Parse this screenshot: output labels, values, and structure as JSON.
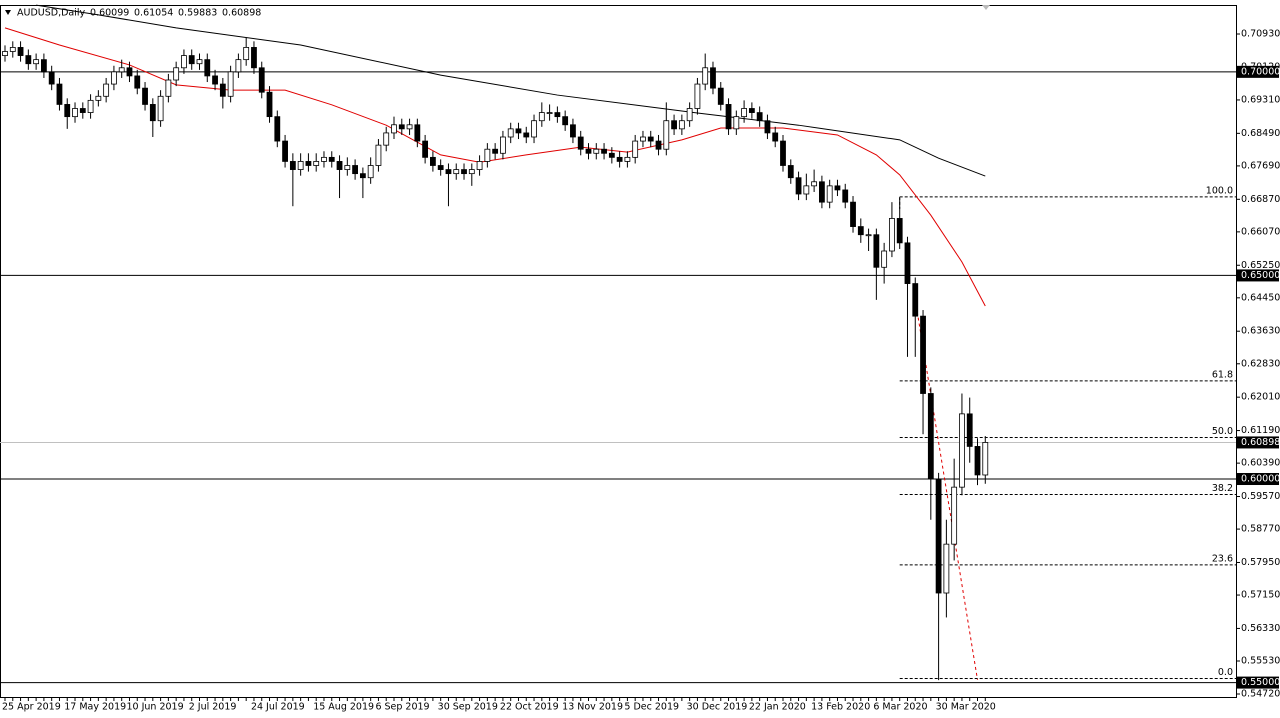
{
  "chart_data": {
    "type": "candlestick",
    "symbol": "AUDUSD,Daily",
    "ohlc_text": [
      "0.60099",
      "0.61054",
      "0.59883",
      "0.60898"
    ],
    "ylim": [
      0.54646,
      0.71642
    ],
    "yticks": [
      {
        "value": 0.7093,
        "label": "0.70930"
      },
      {
        "value": 0.7012,
        "label": "0.70120"
      },
      {
        "value": 0.6931,
        "label": "0.69310"
      },
      {
        "value": 0.6849,
        "label": "0.68490"
      },
      {
        "value": 0.6769,
        "label": "0.67690"
      },
      {
        "value": 0.6687,
        "label": "0.66870"
      },
      {
        "value": 0.6607,
        "label": "0.66070"
      },
      {
        "value": 0.6525,
        "label": "0.65250"
      },
      {
        "value": 0.6445,
        "label": "0.64450"
      },
      {
        "value": 0.6363,
        "label": "0.63630"
      },
      {
        "value": 0.6283,
        "label": "0.62830"
      },
      {
        "value": 0.6201,
        "label": "0.62010"
      },
      {
        "value": 0.6119,
        "label": "0.61190"
      },
      {
        "value": 0.6039,
        "label": "0.60390"
      },
      {
        "value": 0.5957,
        "label": "0.59570"
      },
      {
        "value": 0.5877,
        "label": "0.58770"
      },
      {
        "value": 0.5795,
        "label": "0.57950"
      },
      {
        "value": 0.5715,
        "label": "0.57150"
      },
      {
        "value": 0.5633,
        "label": "0.56330"
      },
      {
        "value": 0.5553,
        "label": "0.55530"
      },
      {
        "value": 0.5472,
        "label": "0.54720"
      }
    ],
    "hlines": [
      {
        "value": 0.7,
        "label": "0.70000"
      },
      {
        "value": 0.65,
        "label": "0.65000"
      },
      {
        "value": 0.6,
        "label": "0.60000"
      },
      {
        "value": 0.55,
        "label": "0.55000"
      }
    ],
    "price_line": {
      "value": 0.60898,
      "label": "0.60898"
    },
    "fib": {
      "start": 115,
      "levels": [
        {
          "value": 0.6693,
          "label": "100.0"
        },
        {
          "value": 0.6241,
          "label": "61.8"
        },
        {
          "value": 0.6102,
          "label": "50.0"
        },
        {
          "value": 0.5962,
          "label": "38.2"
        },
        {
          "value": 0.5789,
          "label": "23.6"
        },
        {
          "value": 0.551,
          "label": "0.0"
        }
      ]
    },
    "categories": [
      "25 Apr 2019",
      null,
      null,
      null,
      null,
      null,
      null,
      null,
      "17 May 2019",
      null,
      null,
      null,
      null,
      null,
      null,
      null,
      "10 Jun 2019",
      null,
      null,
      null,
      null,
      null,
      null,
      null,
      "2 Jul 2019",
      null,
      null,
      null,
      null,
      null,
      null,
      null,
      "24 Jul 2019",
      null,
      null,
      null,
      null,
      null,
      null,
      null,
      "15 Aug 2019",
      null,
      null,
      null,
      null,
      null,
      null,
      null,
      "6 Sep 2019",
      null,
      null,
      null,
      null,
      null,
      null,
      null,
      "30 Sep 2019",
      null,
      null,
      null,
      null,
      null,
      null,
      null,
      "22 Oct 2019",
      null,
      null,
      null,
      null,
      null,
      null,
      null,
      "13 Nov 2019",
      null,
      null,
      null,
      null,
      null,
      null,
      null,
      "5 Dec 2019",
      null,
      null,
      null,
      null,
      null,
      null,
      null,
      "30 Dec 2019",
      null,
      null,
      null,
      null,
      null,
      null,
      null,
      "22 Jan 2020",
      null,
      null,
      null,
      null,
      null,
      null,
      null,
      "13 Feb 2020",
      null,
      null,
      null,
      null,
      null,
      null,
      null,
      "6 Mar 2020",
      null,
      null,
      null,
      null,
      null,
      null,
      null,
      "30 Mar 2020",
      null,
      null,
      null,
      null,
      null,
      null
    ],
    "candles": [
      [
        0.704,
        0.7065,
        0.7025,
        0.705
      ],
      [
        0.705,
        0.7075,
        0.7035,
        0.706
      ],
      [
        0.706,
        0.7075,
        0.7025,
        0.704
      ],
      [
        0.704,
        0.7055,
        0.7005,
        0.702
      ],
      [
        0.702,
        0.7045,
        0.7005,
        0.703
      ],
      [
        0.703,
        0.7045,
        0.6985,
        0.7
      ],
      [
        0.7,
        0.7015,
        0.6955,
        0.697
      ],
      [
        0.697,
        0.6985,
        0.6905,
        0.692
      ],
      [
        0.692,
        0.6935,
        0.686,
        0.689
      ],
      [
        0.689,
        0.6925,
        0.6875,
        0.691
      ],
      [
        0.691,
        0.6925,
        0.6885,
        0.69
      ],
      [
        0.69,
        0.6945,
        0.6885,
        0.693
      ],
      [
        0.693,
        0.6955,
        0.6915,
        0.694
      ],
      [
        0.694,
        0.6985,
        0.6925,
        0.697
      ],
      [
        0.697,
        0.7015,
        0.6955,
        0.7
      ],
      [
        0.7,
        0.703,
        0.6985,
        0.701
      ],
      [
        0.701,
        0.7025,
        0.6975,
        0.699
      ],
      [
        0.699,
        0.7005,
        0.6945,
        0.696
      ],
      [
        0.696,
        0.6975,
        0.6905,
        0.692
      ],
      [
        0.692,
        0.6935,
        0.684,
        0.688
      ],
      [
        0.688,
        0.6955,
        0.6865,
        0.694
      ],
      [
        0.694,
        0.6995,
        0.6925,
        0.698
      ],
      [
        0.698,
        0.7025,
        0.6965,
        0.701
      ],
      [
        0.701,
        0.7055,
        0.6995,
        0.704
      ],
      [
        0.704,
        0.7055,
        0.7005,
        0.702
      ],
      [
        0.702,
        0.7045,
        0.7005,
        0.703
      ],
      [
        0.703,
        0.7045,
        0.6975,
        0.699
      ],
      [
        0.699,
        0.7005,
        0.6955,
        0.697
      ],
      [
        0.697,
        0.6985,
        0.691,
        0.694
      ],
      [
        0.694,
        0.7015,
        0.6925,
        0.7
      ],
      [
        0.7,
        0.7045,
        0.6985,
        0.703
      ],
      [
        0.703,
        0.7085,
        0.7015,
        0.706
      ],
      [
        0.706,
        0.7075,
        0.6995,
        0.701
      ],
      [
        0.701,
        0.7025,
        0.6935,
        0.695
      ],
      [
        0.695,
        0.6965,
        0.6875,
        0.689
      ],
      [
        0.689,
        0.6905,
        0.6815,
        0.683
      ],
      [
        0.683,
        0.6845,
        0.6765,
        0.678
      ],
      [
        0.678,
        0.68,
        0.667,
        0.676
      ],
      [
        0.676,
        0.68,
        0.6745,
        0.678
      ],
      [
        0.678,
        0.68,
        0.6755,
        0.677
      ],
      [
        0.677,
        0.68,
        0.6755,
        0.678
      ],
      [
        0.678,
        0.6805,
        0.6765,
        0.679
      ],
      [
        0.679,
        0.6805,
        0.6765,
        0.678
      ],
      [
        0.678,
        0.6795,
        0.669,
        0.676
      ],
      [
        0.676,
        0.679,
        0.6745,
        0.677
      ],
      [
        0.677,
        0.6785,
        0.6735,
        0.675
      ],
      [
        0.675,
        0.6765,
        0.669,
        0.674
      ],
      [
        0.674,
        0.679,
        0.6725,
        0.677
      ],
      [
        0.677,
        0.6835,
        0.6755,
        0.682
      ],
      [
        0.682,
        0.6865,
        0.6805,
        0.685
      ],
      [
        0.685,
        0.689,
        0.6835,
        0.687
      ],
      [
        0.687,
        0.6885,
        0.6845,
        0.686
      ],
      [
        0.686,
        0.6885,
        0.6845,
        0.687
      ],
      [
        0.687,
        0.6885,
        0.6815,
        0.683
      ],
      [
        0.683,
        0.6845,
        0.6775,
        0.679
      ],
      [
        0.679,
        0.6805,
        0.6755,
        0.677
      ],
      [
        0.677,
        0.6785,
        0.6745,
        0.676
      ],
      [
        0.676,
        0.6775,
        0.667,
        0.675
      ],
      [
        0.675,
        0.6775,
        0.6735,
        0.676
      ],
      [
        0.676,
        0.6775,
        0.6735,
        0.675
      ],
      [
        0.675,
        0.6775,
        0.672,
        0.676
      ],
      [
        0.676,
        0.6795,
        0.6745,
        0.678
      ],
      [
        0.678,
        0.6825,
        0.6765,
        0.681
      ],
      [
        0.681,
        0.6825,
        0.6785,
        0.68
      ],
      [
        0.68,
        0.6855,
        0.6785,
        0.684
      ],
      [
        0.684,
        0.6875,
        0.6825,
        0.686
      ],
      [
        0.686,
        0.6875,
        0.6835,
        0.685
      ],
      [
        0.685,
        0.6865,
        0.6825,
        0.684
      ],
      [
        0.684,
        0.6895,
        0.6825,
        0.688
      ],
      [
        0.688,
        0.6925,
        0.6865,
        0.69
      ],
      [
        0.69,
        0.692,
        0.688,
        0.69
      ],
      [
        0.69,
        0.6915,
        0.6875,
        0.689
      ],
      [
        0.689,
        0.6905,
        0.6855,
        0.687
      ],
      [
        0.687,
        0.6885,
        0.6825,
        0.684
      ],
      [
        0.684,
        0.6855,
        0.6795,
        0.681
      ],
      [
        0.681,
        0.6825,
        0.6785,
        0.68
      ],
      [
        0.68,
        0.6825,
        0.6785,
        0.681
      ],
      [
        0.681,
        0.6825,
        0.6785,
        0.68
      ],
      [
        0.68,
        0.6815,
        0.6775,
        0.679
      ],
      [
        0.679,
        0.6805,
        0.6765,
        0.678
      ],
      [
        0.678,
        0.6805,
        0.6765,
        0.679
      ],
      [
        0.679,
        0.6845,
        0.6775,
        0.683
      ],
      [
        0.683,
        0.6855,
        0.6815,
        0.684
      ],
      [
        0.684,
        0.6855,
        0.6815,
        0.683
      ],
      [
        0.683,
        0.6845,
        0.6795,
        0.681
      ],
      [
        0.681,
        0.6925,
        0.6795,
        0.688
      ],
      [
        0.688,
        0.6895,
        0.6845,
        0.686
      ],
      [
        0.686,
        0.6895,
        0.6845,
        0.688
      ],
      [
        0.688,
        0.6925,
        0.6865,
        0.691
      ],
      [
        0.691,
        0.6985,
        0.6895,
        0.697
      ],
      [
        0.697,
        0.7045,
        0.6955,
        0.701
      ],
      [
        0.701,
        0.7025,
        0.6945,
        0.696
      ],
      [
        0.696,
        0.6975,
        0.6905,
        0.692
      ],
      [
        0.692,
        0.6935,
        0.6845,
        0.686
      ],
      [
        0.686,
        0.6905,
        0.6845,
        0.689
      ],
      [
        0.689,
        0.693,
        0.6875,
        0.691
      ],
      [
        0.691,
        0.6925,
        0.6885,
        0.69
      ],
      [
        0.69,
        0.6915,
        0.6865,
        0.688
      ],
      [
        0.688,
        0.6895,
        0.6835,
        0.685
      ],
      [
        0.685,
        0.6865,
        0.6815,
        0.683
      ],
      [
        0.683,
        0.6845,
        0.6755,
        0.677
      ],
      [
        0.677,
        0.6785,
        0.6725,
        0.674
      ],
      [
        0.674,
        0.6755,
        0.6685,
        0.67
      ],
      [
        0.67,
        0.675,
        0.6685,
        0.672
      ],
      [
        0.672,
        0.676,
        0.6705,
        0.673
      ],
      [
        0.673,
        0.6745,
        0.6665,
        0.668
      ],
      [
        0.668,
        0.6735,
        0.6665,
        0.672
      ],
      [
        0.672,
        0.6735,
        0.6695,
        0.671
      ],
      [
        0.671,
        0.6725,
        0.6665,
        0.668
      ],
      [
        0.668,
        0.6695,
        0.6605,
        0.662
      ],
      [
        0.662,
        0.664,
        0.658,
        0.66
      ],
      [
        0.66,
        0.6615,
        0.656,
        0.66
      ],
      [
        0.66,
        0.6615,
        0.644,
        0.652
      ],
      [
        0.652,
        0.658,
        0.648,
        0.656
      ],
      [
        0.656,
        0.668,
        0.6545,
        0.664
      ],
      [
        0.664,
        0.669,
        0.6565,
        0.658
      ],
      [
        0.658,
        0.6595,
        0.63,
        0.648
      ],
      [
        0.648,
        0.6495,
        0.63,
        0.64
      ],
      [
        0.64,
        0.6415,
        0.611,
        0.621
      ],
      [
        0.621,
        0.6225,
        0.59,
        0.6
      ],
      [
        0.6,
        0.6015,
        0.5506,
        0.572
      ],
      [
        0.572,
        0.59,
        0.566,
        0.584
      ],
      [
        0.584,
        0.605,
        0.58,
        0.598
      ],
      [
        0.598,
        0.621,
        0.596,
        0.616
      ],
      [
        0.616,
        0.62,
        0.604,
        0.608
      ],
      [
        0.608,
        0.61,
        0.5985,
        0.601
      ],
      [
        0.60099,
        0.61054,
        0.59883,
        0.60898
      ]
    ],
    "lines": [
      {
        "color": "#e00000",
        "x": [
          0,
          7,
          16,
          22,
          29,
          36,
          42,
          49,
          56,
          61,
          67,
          74,
          80,
          87,
          92,
          100,
          107,
          112,
          115,
          119,
          123,
          126
        ],
        "values": [
          0.7108,
          0.7066,
          0.7017,
          0.6968,
          0.6955,
          0.6955,
          0.6919,
          0.6869,
          0.6796,
          0.6778,
          0.6796,
          0.6815,
          0.6803,
          0.6833,
          0.6862,
          0.6862,
          0.6845,
          0.6796,
          0.6747,
          0.6648,
          0.6533,
          0.6425
        ]
      },
      {
        "color": "#000000",
        "x": [
          4,
          12,
          22,
          38,
          56,
          71,
          89,
          102,
          115,
          120,
          126
        ],
        "values": [
          0.7164,
          0.714,
          0.7108,
          0.7066,
          0.6992,
          0.6943,
          0.6899,
          0.6869,
          0.6833,
          0.6788,
          0.6744
        ]
      },
      {
        "color": "#e00000",
        "dashed": true,
        "x": [
          117,
          125
        ],
        "values": [
          0.644,
          0.5507
        ]
      }
    ]
  }
}
